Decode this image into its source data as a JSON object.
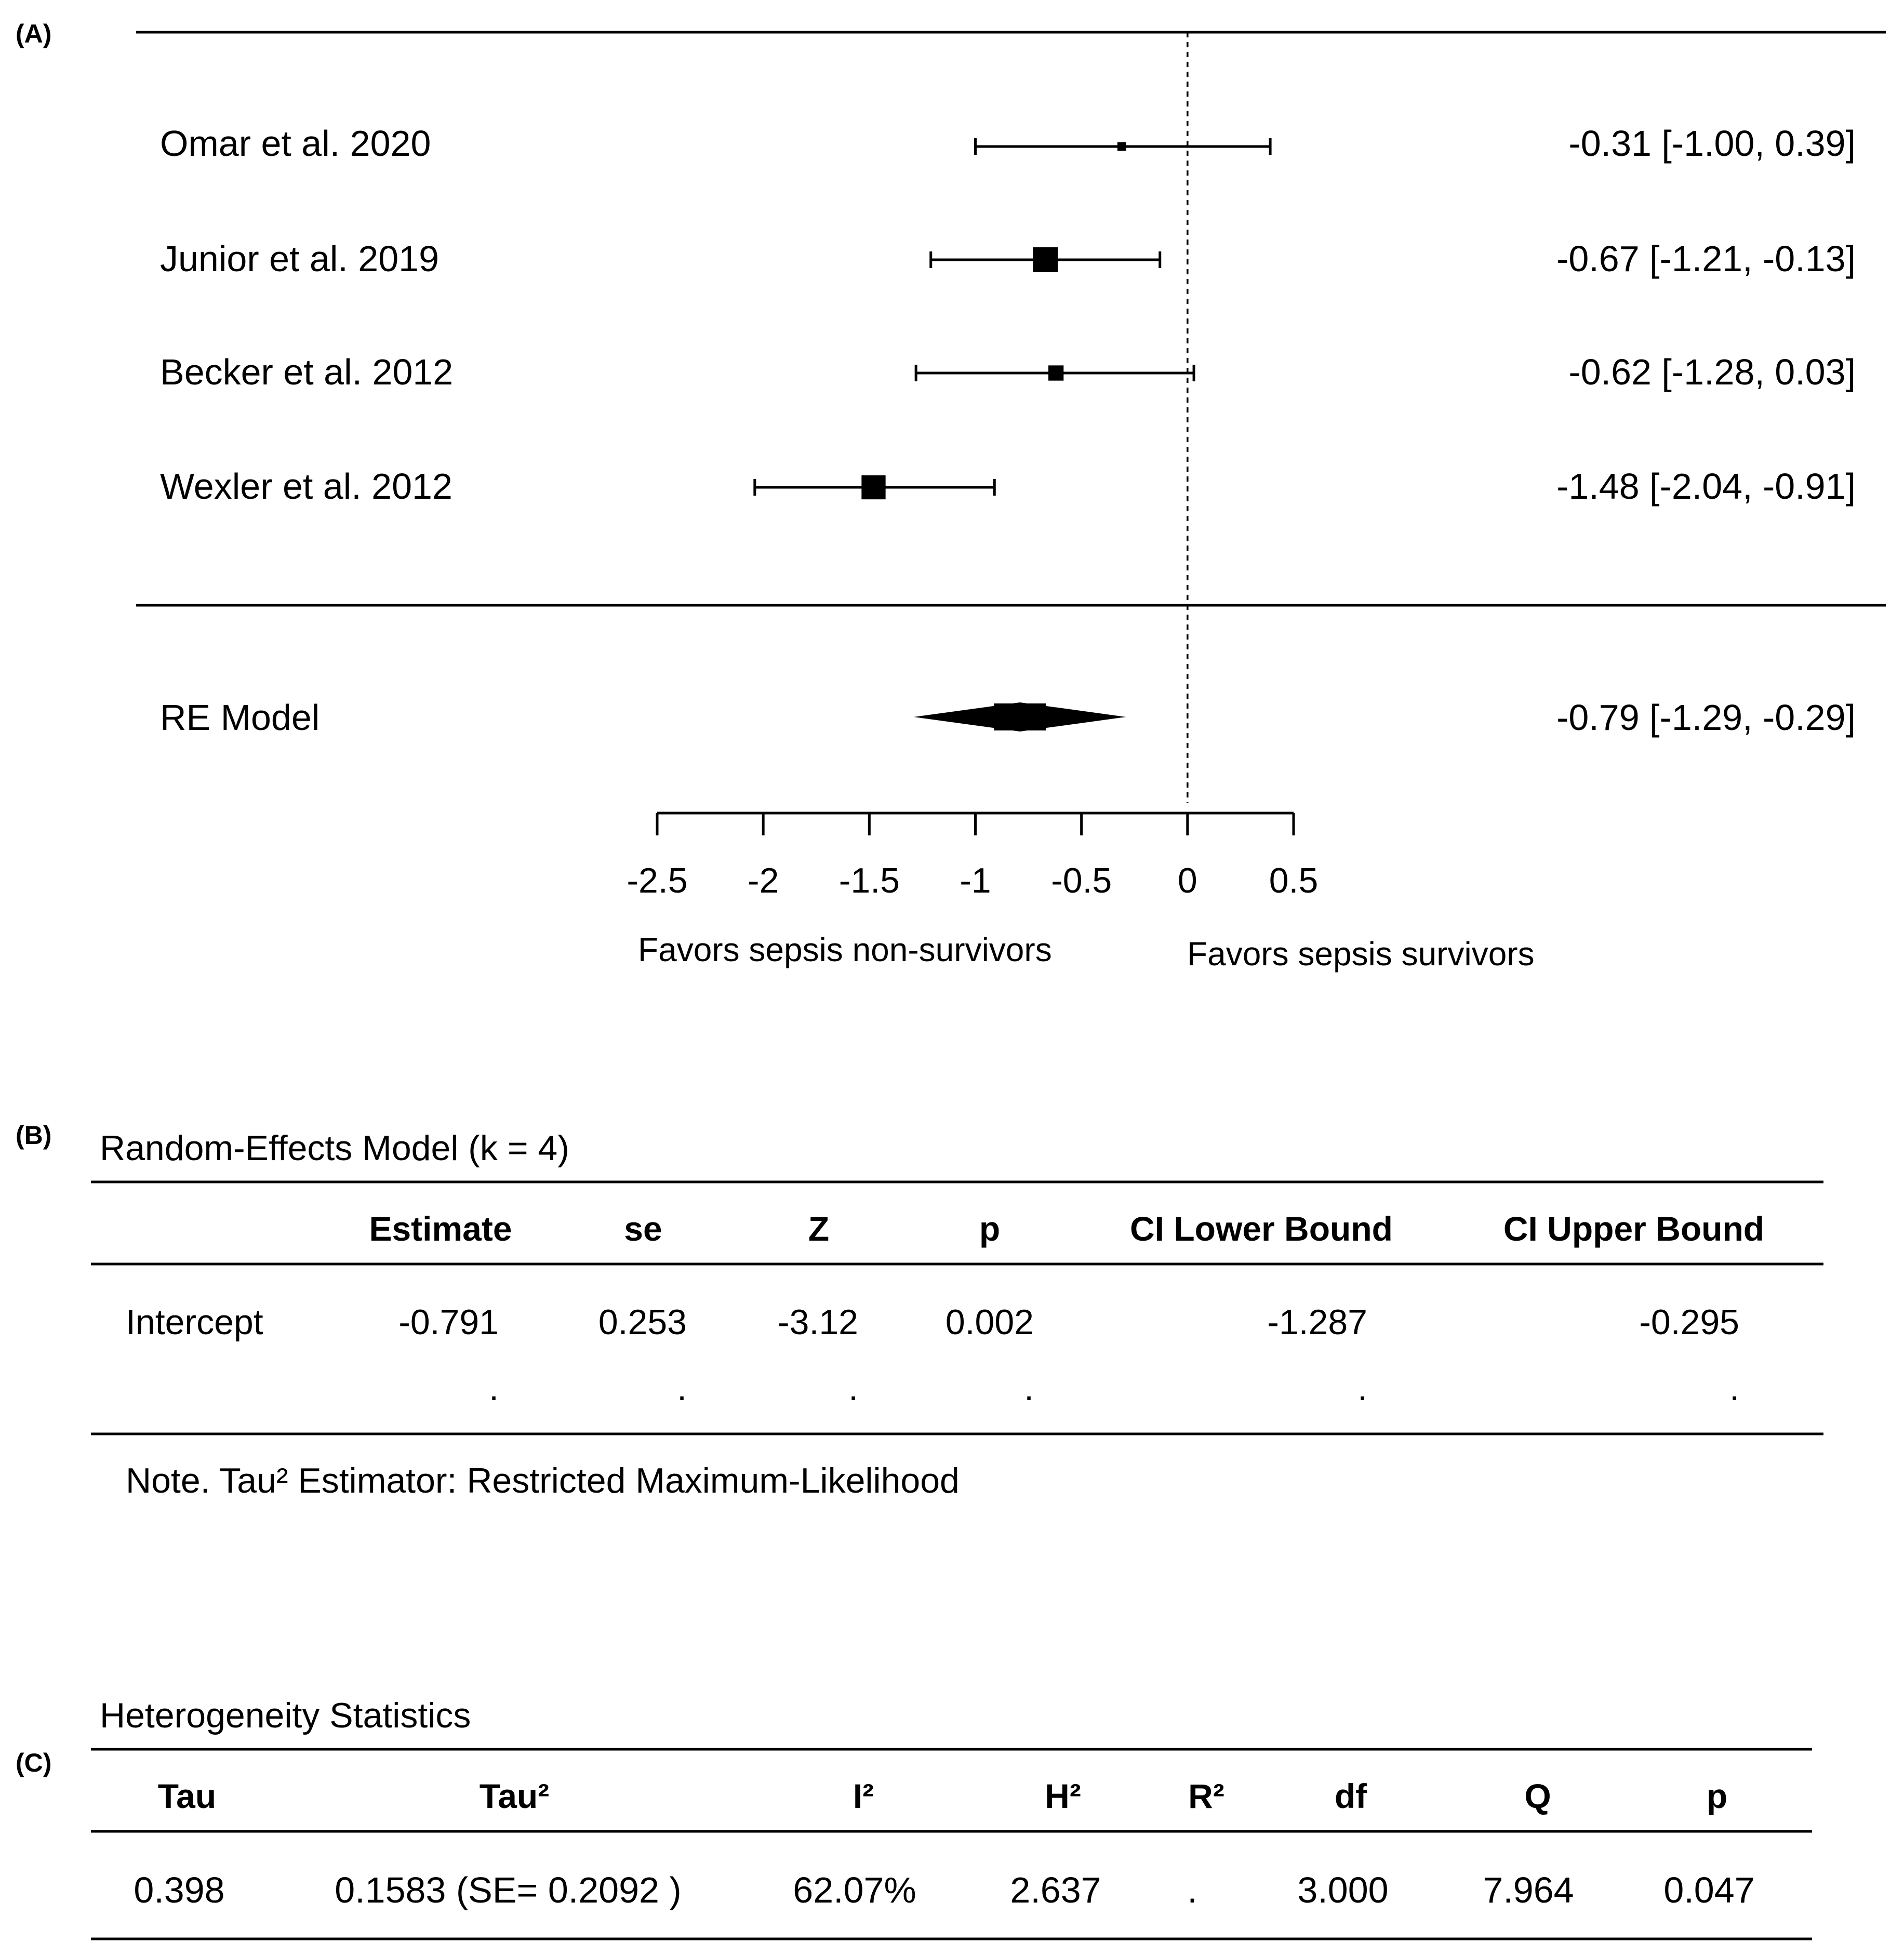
{
  "panels": {
    "a": "(A)",
    "b": "(B)",
    "c": "(C)"
  },
  "chart_data": {
    "type": "forest",
    "studies": [
      {
        "label": "Omar et  al. 2020",
        "estimate": -0.31,
        "lower": -1.0,
        "upper": 0.39,
        "weight": 0.08,
        "ci_text": "-0.31 [-1.00,  0.39]"
      },
      {
        "label": "Junior et al. 2019",
        "estimate": -0.67,
        "lower": -1.21,
        "upper": -0.13,
        "weight": 1.0,
        "ci_text": "-0.67 [-1.21, -0.13]"
      },
      {
        "label": "Becker et al. 2012",
        "estimate": -0.62,
        "lower": -1.28,
        "upper": 0.03,
        "weight": 0.45,
        "ci_text": "-0.62 [-1.28,  0.03]"
      },
      {
        "label": "Wexler et al. 2012",
        "estimate": -1.48,
        "lower": -2.04,
        "upper": -0.91,
        "weight": 0.95,
        "ci_text": "-1.48 [-2.04, -0.91]"
      }
    ],
    "summary": {
      "label": "RE Model",
      "estimate": -0.79,
      "lower": -1.29,
      "upper": -0.29,
      "ci_text": "-0.79 [-1.29, -0.29]"
    },
    "x_ticks": [
      -2.5,
      -2,
      -1.5,
      -1,
      -0.5,
      0,
      0.5
    ],
    "x_tick_labels": [
      "-2.5",
      "-2",
      "-1.5",
      "-1",
      "-0.5",
      "0",
      "0.5"
    ],
    "xlim": [
      -2.5,
      0.5
    ],
    "reference_line": 0,
    "favors_left": "Favors sepsis non-survivors",
    "favors_right": "Favors sepsis survivors"
  },
  "re_table": {
    "title": "Random-Effects Model (k = 4)",
    "headers": [
      "",
      "Estimate",
      "se",
      "Z",
      "p",
      "CI Lower Bound",
      "CI Upper Bound"
    ],
    "row": [
      "Intercept",
      "-0.791",
      "0.253",
      "-3.12",
      "0.002",
      "-1.287",
      "-0.295"
    ],
    "dots": [
      ".",
      ".",
      ".",
      ".",
      ".",
      "."
    ],
    "note": "Note. Tau² Estimator: Restricted Maximum-Likelihood"
  },
  "het_table": {
    "title": "Heterogeneity Statistics",
    "headers": [
      "Tau",
      "Tau²",
      "I²",
      "H²",
      "R²",
      "df",
      "Q",
      "p"
    ],
    "row": [
      "0.398",
      "0.1583 (SE= 0.2092 )",
      "62.07%",
      "2.637",
      ".",
      "3.000",
      "7.964",
      "0.047"
    ]
  }
}
